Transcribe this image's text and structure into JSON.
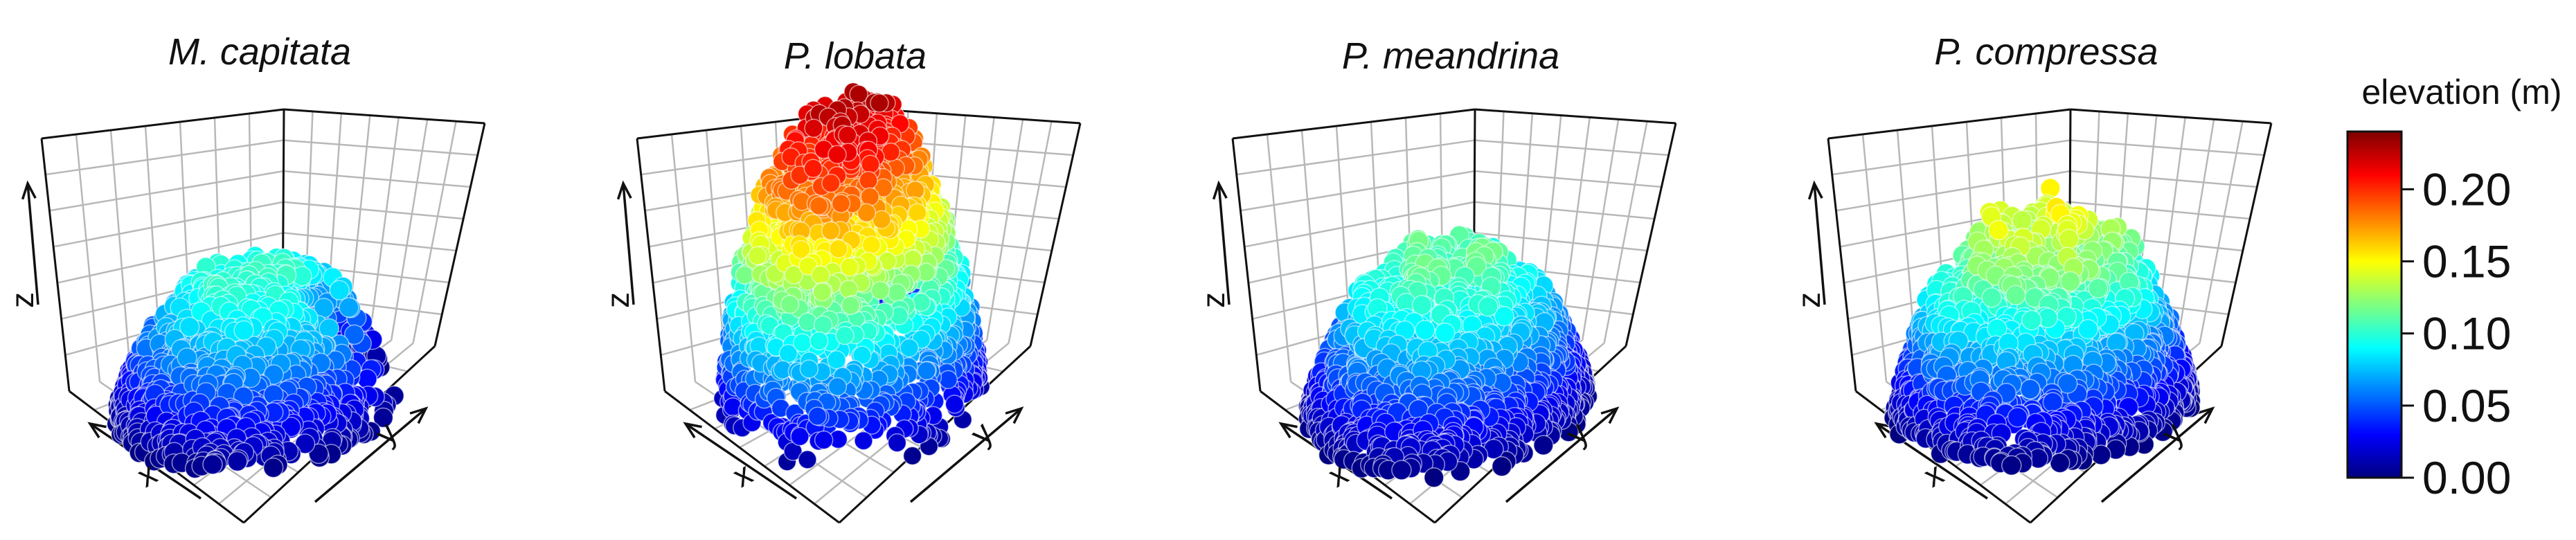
{
  "chart_data": [
    {
      "type": "scatter3d",
      "title": "M. capitata",
      "xlabel": "x",
      "ylabel": "y",
      "zlabel": "z",
      "grid": true,
      "shape": {
        "spread": 0.85,
        "dome": 0.1,
        "bumpy": 0.35,
        "notch": true,
        "spread_y": 0.95
      },
      "elevation_max": 0.105
    },
    {
      "type": "scatter3d",
      "title": "P. lobata",
      "xlabel": "x",
      "ylabel": "y",
      "zlabel": "z",
      "grid": true,
      "shape": {
        "spread": 0.78,
        "dome": 0.0,
        "bumpy": 0.05,
        "notch": false,
        "spread_y": 0.95
      },
      "elevation_max": 0.235
    },
    {
      "type": "scatter3d",
      "title": "P. meandrina",
      "xlabel": "x",
      "ylabel": "y",
      "zlabel": "z",
      "grid": true,
      "shape": {
        "spread": 0.85,
        "dome": 0.45,
        "bumpy": 0.55,
        "notch": false,
        "spread_y": 1.0
      },
      "elevation_max": 0.125
    },
    {
      "type": "scatter3d",
      "title": "P. compressa",
      "xlabel": "x",
      "ylabel": "y",
      "zlabel": "z",
      "grid": true,
      "shape": {
        "spread": 0.9,
        "dome": 0.55,
        "bumpy": 0.85,
        "notch": false,
        "spread_y": 0.85
      },
      "elevation_max": 0.155
    }
  ],
  "colorbar": {
    "title": "elevation (m)",
    "min": 0.0,
    "max": 0.24,
    "ticks": [
      "0.20",
      "0.15",
      "0.10",
      "0.05",
      "0.00"
    ],
    "tick_values": [
      0.2,
      0.15,
      0.1,
      0.05,
      0.0
    ],
    "palette": [
      "#00007f",
      "#0000ff",
      "#007fff",
      "#00ffff",
      "#7fff7f",
      "#ffff00",
      "#ff7f00",
      "#ff0000",
      "#7f0000"
    ]
  }
}
